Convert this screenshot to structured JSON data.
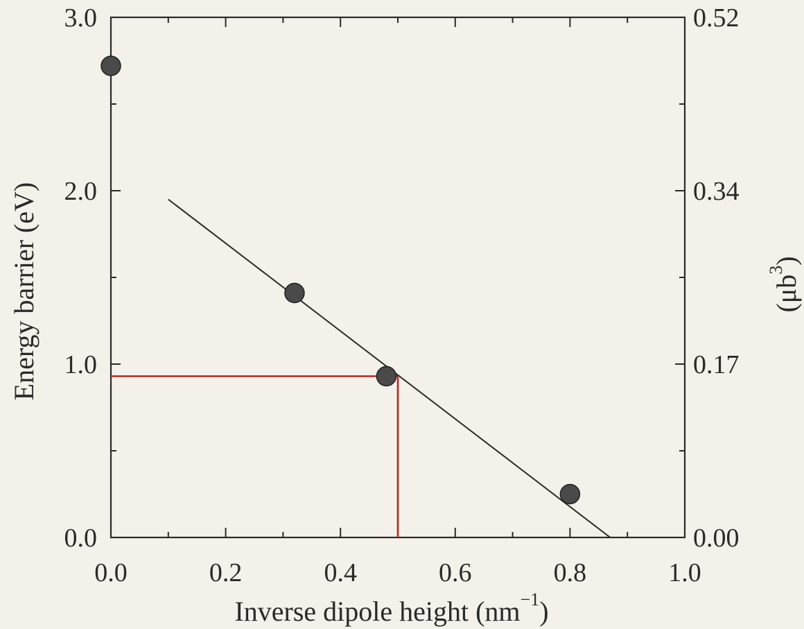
{
  "chart_data": {
    "type": "scatter",
    "xlabel": "Inverse dipole height (nm",
    "xlabel_superscript": "−1",
    "xlabel_suffix": ")",
    "ylabel": "Energy barrier (eV)",
    "ylabel_right": "(μb",
    "ylabel_right_superscript": "3",
    "ylabel_right_suffix": ")",
    "xlim": [
      0.0,
      1.0
    ],
    "ylim": [
      0.0,
      3.0
    ],
    "x_ticks": [
      "0.0",
      "0.2",
      "0.4",
      "0.6",
      "0.8",
      "1.0"
    ],
    "y_ticks": [
      "0.0",
      "1.0",
      "2.0",
      "3.0"
    ],
    "y_right_ticks": [
      "0.00",
      "0.17",
      "0.34",
      "0.52"
    ],
    "grid": false,
    "points": [
      {
        "x": 0.0,
        "y": 2.72
      },
      {
        "x": 0.32,
        "y": 1.41
      },
      {
        "x": 0.48,
        "y": 0.93
      },
      {
        "x": 0.8,
        "y": 0.25
      }
    ],
    "fit_line": {
      "x": [
        0.1,
        0.87
      ],
      "y": [
        1.95,
        0.0
      ]
    },
    "guide_lines": {
      "y": 0.93,
      "x": 0.5,
      "color": "#b8281e"
    },
    "marker_color": "#4a4a4a",
    "line_color": "#2a2a2a"
  }
}
